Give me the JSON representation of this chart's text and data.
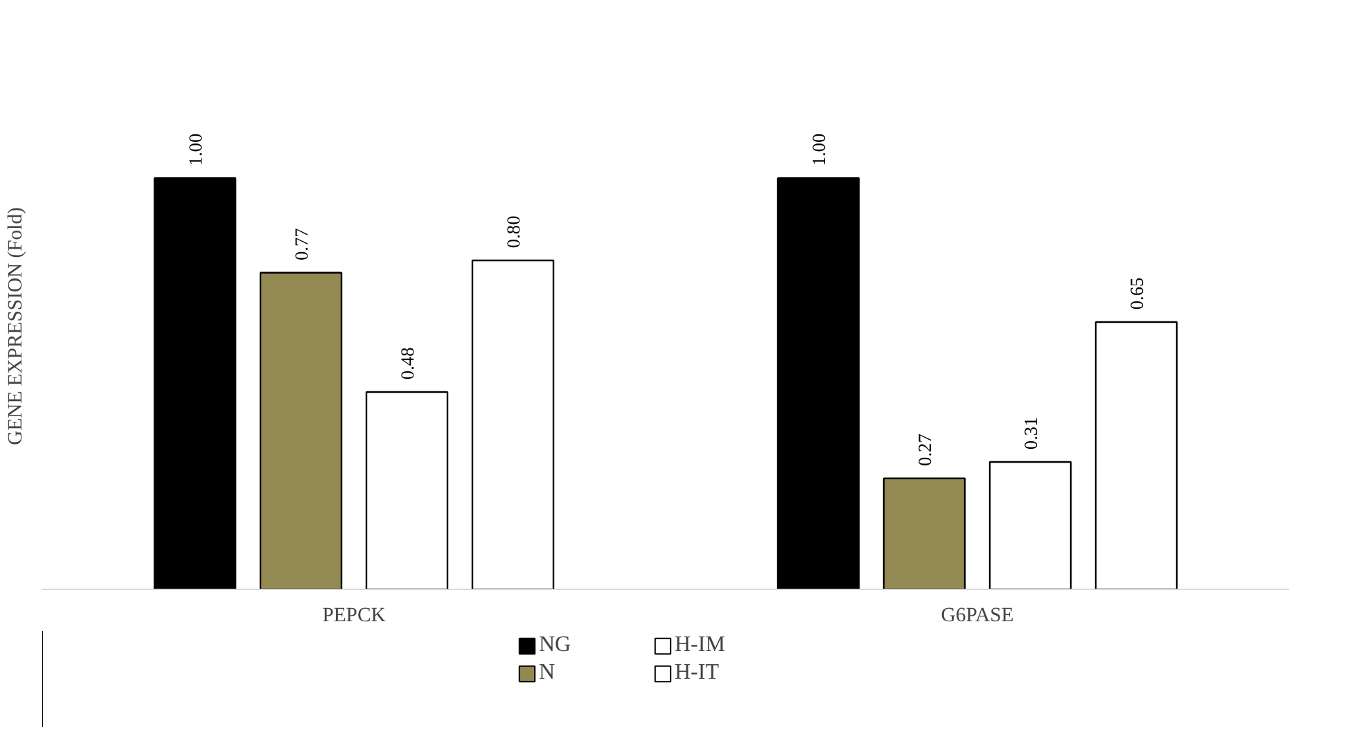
{
  "chart_data": {
    "type": "bar",
    "ylabel": "GENE EXPRESSION (Fold)",
    "categories": [
      "PEPCK",
      "G6PASE"
    ],
    "series": [
      {
        "name": "NG",
        "color": "#000000",
        "values": [
          1.0,
          1.0
        ],
        "value_labels": [
          "1.00",
          "1.00"
        ]
      },
      {
        "name": "N",
        "color": "#938953",
        "values": [
          0.77,
          0.27
        ],
        "value_labels": [
          "0.77",
          "0.27"
        ]
      },
      {
        "name": "H-IM",
        "color": "#ffffff",
        "values": [
          0.48,
          0.31
        ],
        "value_labels": [
          "0.48",
          "0.31"
        ]
      },
      {
        "name": "H-IT",
        "color": "#ffffff",
        "values": [
          0.8,
          0.65
        ],
        "value_labels": [
          "0.80",
          "0.65"
        ]
      }
    ],
    "legend": "bottom",
    "tick_labels": "x"
  }
}
